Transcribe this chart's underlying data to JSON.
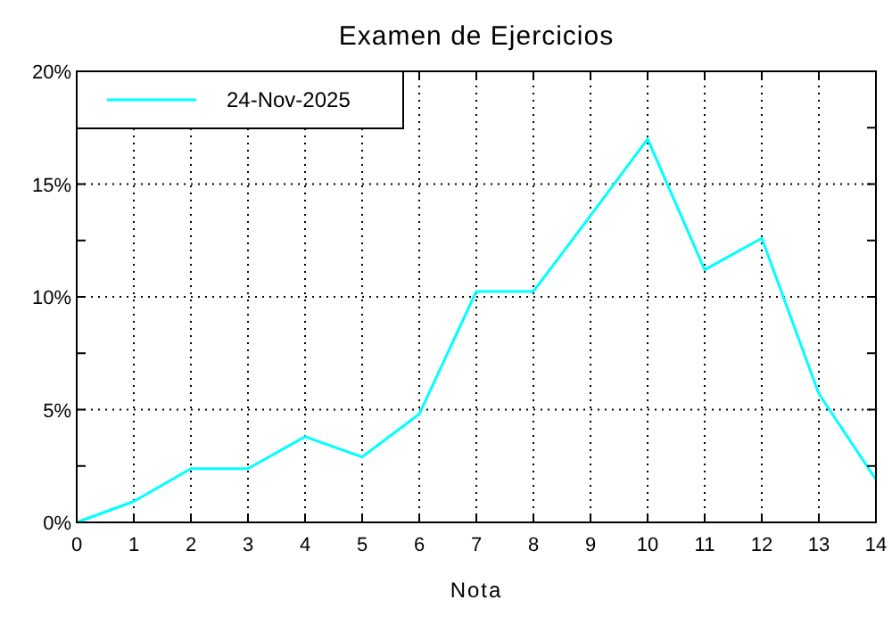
{
  "chart_data": {
    "type": "line",
    "title": "Examen de Ejercicios",
    "xlabel": "Nota",
    "x": [
      0,
      1,
      2,
      3,
      4,
      5,
      6,
      7,
      8,
      9,
      10,
      11,
      12,
      13,
      14
    ],
    "series": [
      {
        "name": "24-Nov-2025",
        "color": "#00ffff",
        "values": [
          0,
          0.93,
          2.38,
          2.38,
          3.8,
          2.9,
          4.8,
          10.24,
          10.24,
          13.6,
          17.0,
          11.2,
          12.6,
          5.7,
          1.9
        ]
      }
    ],
    "xlim": [
      0,
      14
    ],
    "xticks": [
      0,
      1,
      2,
      3,
      4,
      5,
      6,
      7,
      8,
      9,
      10,
      11,
      12,
      13,
      14
    ],
    "ylim": [
      0,
      20
    ],
    "yticks": [
      {
        "value": 0,
        "label": "0%"
      },
      {
        "value": 2.5,
        "label": null
      },
      {
        "value": 5,
        "label": "5%"
      },
      {
        "value": 7.5,
        "label": null
      },
      {
        "value": 10,
        "label": "10%"
      },
      {
        "value": 12.5,
        "label": null
      },
      {
        "value": 15,
        "label": "15%"
      },
      {
        "value": 17.5,
        "label": null
      },
      {
        "value": 20,
        "label": "20%"
      }
    ],
    "grid": true,
    "legend": "top left",
    "line_style": "solid",
    "marker": "none"
  }
}
